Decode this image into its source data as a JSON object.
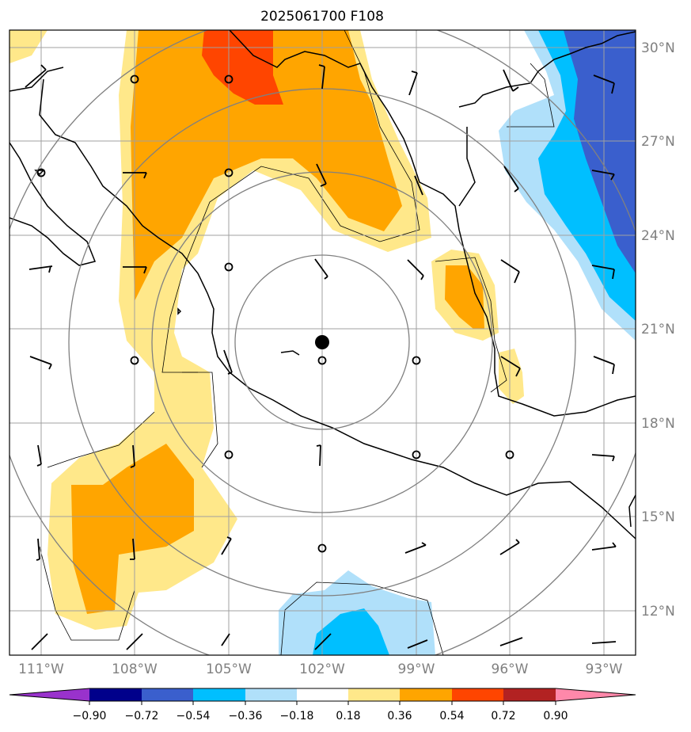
{
  "title": "2025061700 F108",
  "lat_labels": [
    "30°N",
    "27°N",
    "24°N",
    "21°N",
    "18°N",
    "15°N",
    "12°N"
  ],
  "lon_labels": [
    "111°W",
    "108°W",
    "105°W",
    "102°W",
    "99°W",
    "96°W",
    "93°W"
  ],
  "colorbar": {
    "ticks": [
      "−0.90",
      "−0.72",
      "−0.54",
      "−0.36",
      "−0.18",
      "0.18",
      "0.36",
      "0.54",
      "0.72",
      "0.90"
    ],
    "colors": [
      "#9932cc",
      "#00008b",
      "#3a5fcd",
      "#00bfff",
      "#b0e0fa",
      "#ffffff",
      "#ffe88a",
      "#ffa500",
      "#ff4500",
      "#b22222",
      "#ff88aa"
    ]
  },
  "colors": {
    "land_outline": "#000000",
    "grid": "#a0a0a0",
    "range_rings": "#808080",
    "center_marker": "#000000"
  }
}
